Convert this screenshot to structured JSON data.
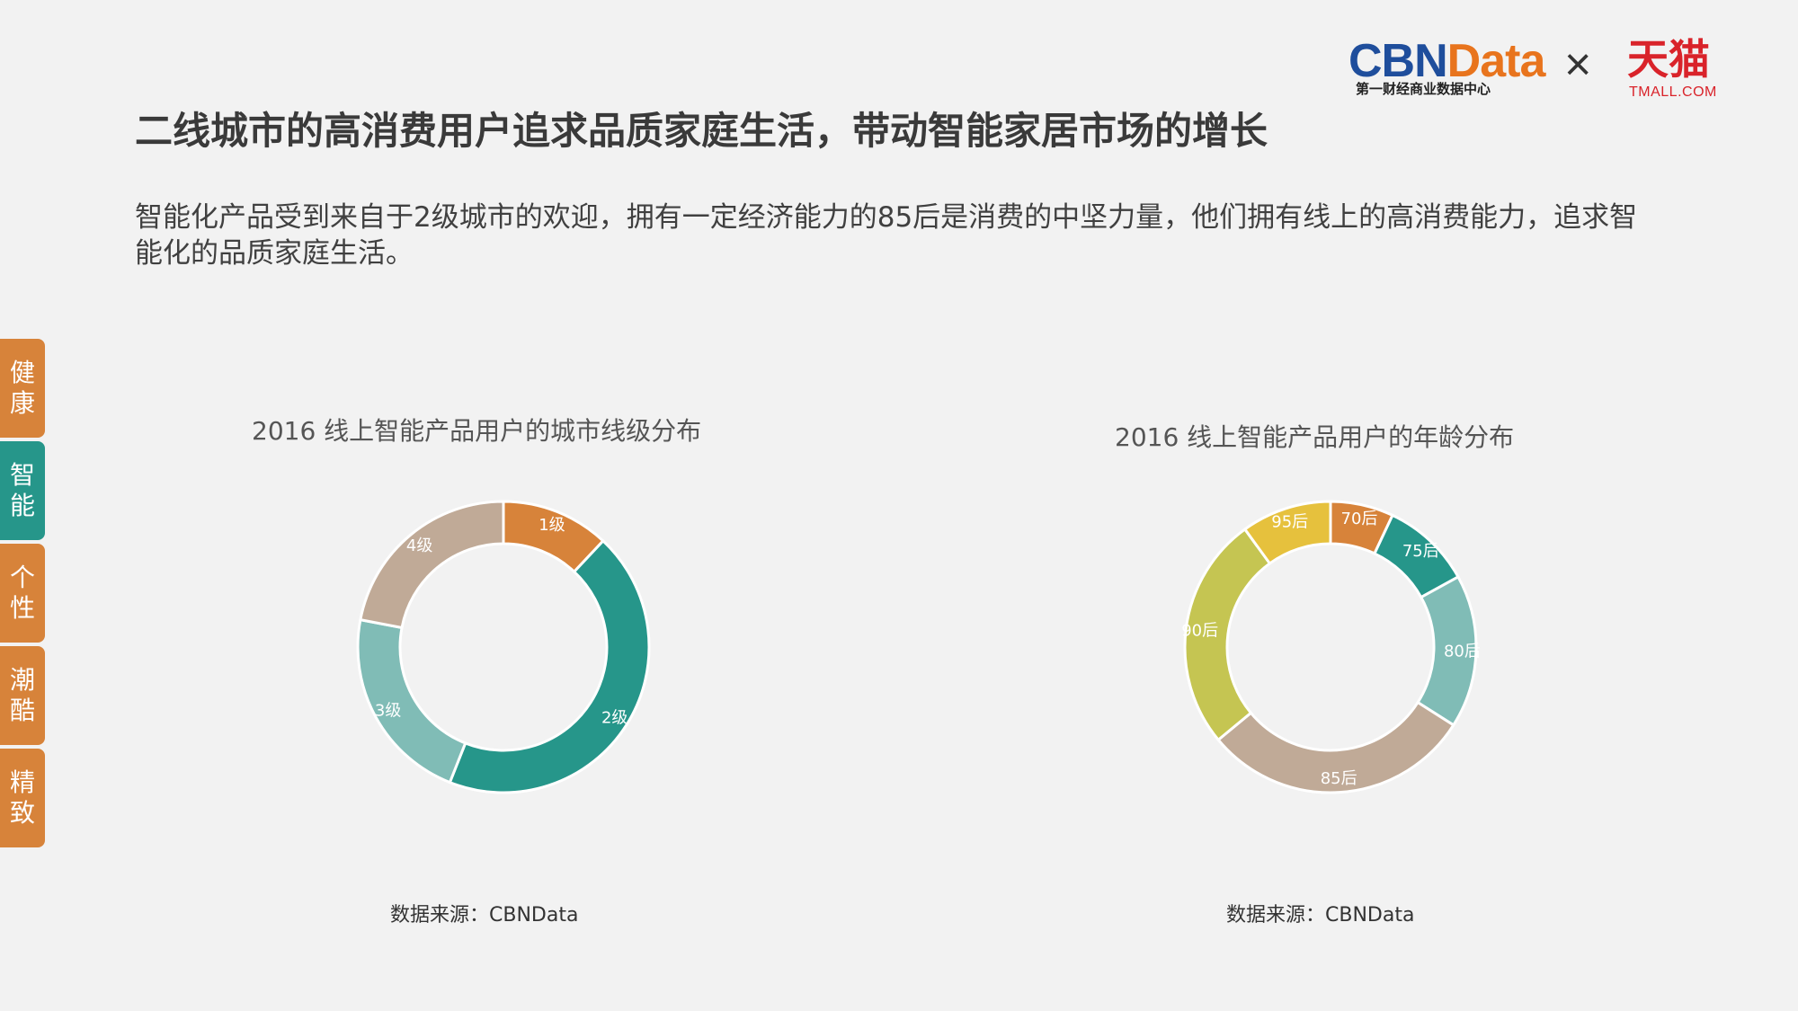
{
  "header": {
    "cbn_word_part1": "CBN",
    "cbn_word_part2": "Data",
    "cbn_subtitle": "第一财经商业数据中心",
    "times_symbol": "×",
    "tmall_cn": "天猫",
    "tmall_en": "TMALL.COM"
  },
  "title": "二线城市的高消费用户追求品质家庭生活，带动智能家居市场的增长",
  "description": "智能化产品受到来自于2级城市的欢迎，拥有一定经济能力的85后是消费的中坚力量，他们拥有线上的高消费能力，追求智能化的品质家庭生活。",
  "side_tabs": [
    {
      "label": "健康",
      "active": false
    },
    {
      "label": "智能",
      "active": true
    },
    {
      "label": "个性",
      "active": false
    },
    {
      "label": "潮酷",
      "active": false
    },
    {
      "label": "精致",
      "active": false
    }
  ],
  "chart_data": [
    {
      "type": "pie",
      "title": "2016 线上智能产品用户的城市线级分布",
      "source": "数据来源：CBNData",
      "categories": [
        "1级",
        "2级",
        "3级",
        "4级"
      ],
      "values": [
        12,
        44,
        22,
        22
      ],
      "colors": [
        "#d7833a",
        "#26968a",
        "#80bcb6",
        "#c0aa97"
      ]
    },
    {
      "type": "pie",
      "title": "2016 线上智能产品用户的年龄分布",
      "source": "数据来源：CBNData",
      "categories": [
        "70后",
        "75后",
        "80后",
        "85后",
        "90后",
        "95后"
      ],
      "values": [
        7,
        10,
        17,
        30,
        26,
        10
      ],
      "colors": [
        "#d7833a",
        "#26968a",
        "#80bcb6",
        "#c0aa97",
        "#c5c552",
        "#e6c13d"
      ]
    }
  ]
}
